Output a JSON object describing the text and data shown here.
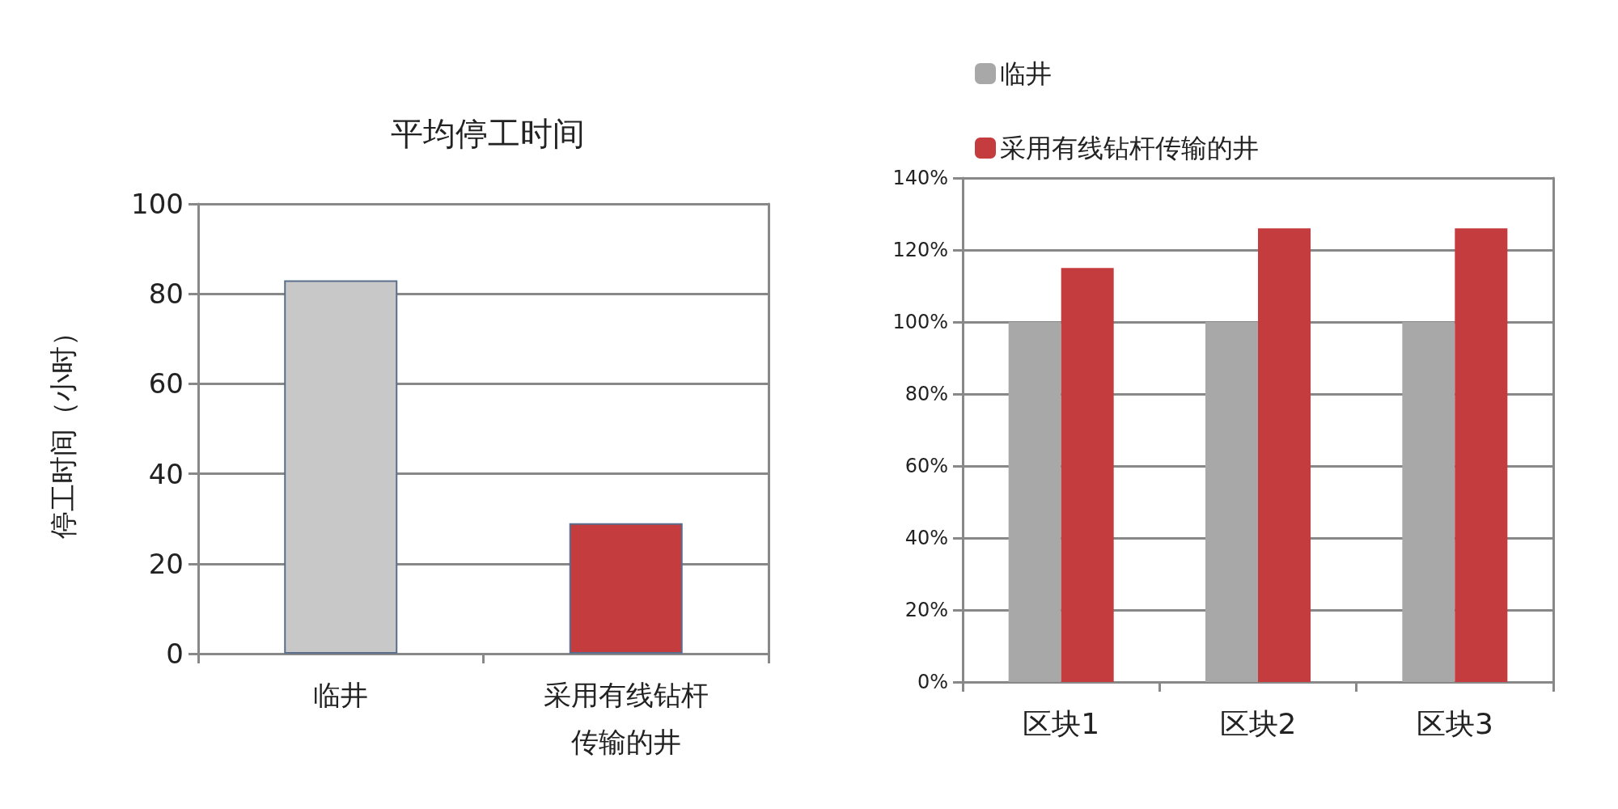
{
  "chart_data": [
    {
      "type": "bar",
      "title": "平均停工时间",
      "ylabel": "停工时间（小时）",
      "categories": [
        "临井",
        "采用有线钻杆传输的井"
      ],
      "values": [
        83,
        29
      ],
      "colors": [
        "#c8c8c8",
        "#c43c3e"
      ],
      "ylim": [
        0,
        100
      ],
      "yticks": [
        0,
        20,
        40,
        60,
        80,
        100
      ],
      "grid": "y",
      "legend": false
    },
    {
      "type": "bar",
      "categories": [
        "区块1",
        "区块2",
        "区块3"
      ],
      "series": [
        {
          "name": "临井",
          "color": "#a8a8a8",
          "values": [
            100,
            100,
            100
          ]
        },
        {
          "name": "采用有线钻杆传输的井",
          "color": "#c43c3e",
          "values": [
            115,
            126,
            126
          ]
        }
      ],
      "ylim": [
        0,
        140
      ],
      "yticks": [
        {
          "value": 0,
          "label": "0%"
        },
        {
          "value": 20,
          "label": "20%"
        },
        {
          "value": 40,
          "label": "40%"
        },
        {
          "value": 60,
          "label": "60%"
        },
        {
          "value": 80,
          "label": "80%"
        },
        {
          "value": 100,
          "label": "100%"
        },
        {
          "value": 120,
          "label": "120%"
        },
        {
          "value": 140,
          "label": "140%"
        }
      ],
      "grid": "y",
      "legend": "top left"
    }
  ]
}
